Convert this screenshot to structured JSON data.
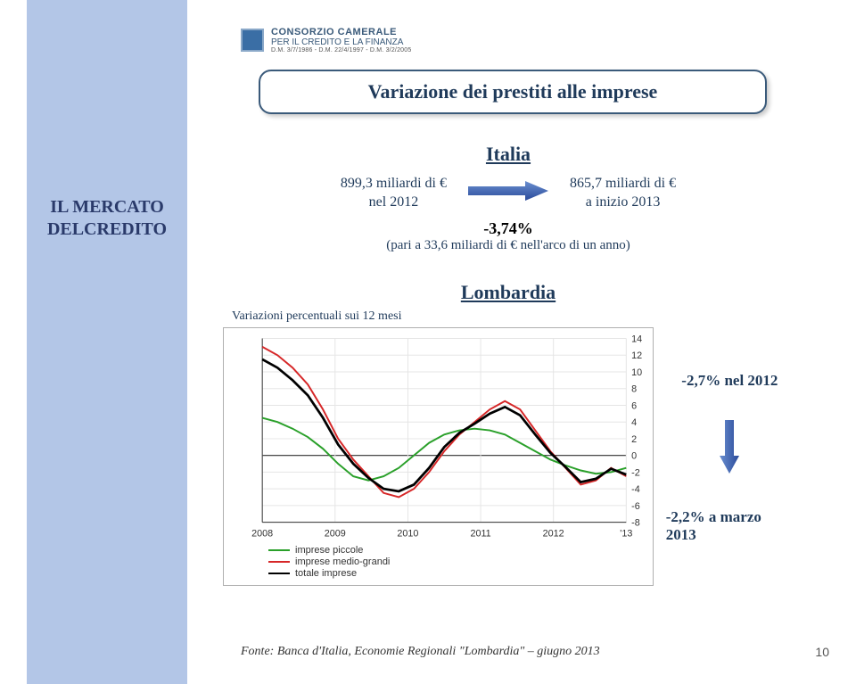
{
  "logo": {
    "name": "CONSORZIO CAMERALE",
    "sub1": "PER IL CREDITO E LA FINANZA",
    "sub2": "D.M. 3/7/1986 - D.M. 22/4/1997 - D.M. 3/2/2005"
  },
  "title": "Variazione dei prestiti alle imprese",
  "sidebar": {
    "line1": "IL MERCATO",
    "line2": "DELCREDITO"
  },
  "italia": {
    "heading": "Italia",
    "left_line1": "899,3 miliardi di €",
    "left_line2": "nel 2012",
    "right_line1": "865,7 miliardi di €",
    "right_line2": "a inizio 2013",
    "percent": "-3,74%",
    "paren": "(pari a 33,6 miliardi di € nell'arco di un anno)",
    "arrow_color": "#3a5faa"
  },
  "lombardia": {
    "heading": "Lombardia",
    "subtitle": "Variazioni percentuali sui 12 mesi",
    "note1": "-2,7% nel 2012",
    "note2": "-2,2% a marzo 2013",
    "arrow_color": "#3a5faa"
  },
  "chart": {
    "type": "line",
    "background_color": "#ffffff",
    "border_color": "#b0b0b0",
    "grid_color": "#e5e5e5",
    "axis_color": "#333333",
    "x_labels": [
      "2008",
      "2009",
      "2010",
      "2011",
      "2012",
      "'13"
    ],
    "y_min": -8,
    "y_max": 14,
    "y_tick_step": 2,
    "label_fontsize": 11,
    "series": [
      {
        "name": "imprese piccole",
        "color": "#2aa02a",
        "width": 2,
        "values": [
          4.5,
          4.0,
          3.2,
          2.2,
          0.8,
          -1.0,
          -2.5,
          -3.0,
          -2.5,
          -1.5,
          0.0,
          1.5,
          2.5,
          3.0,
          3.2,
          3.0,
          2.5,
          1.5,
          0.5,
          -0.5,
          -1.2,
          -1.8,
          -2.2,
          -2.0,
          -1.5
        ]
      },
      {
        "name": "imprese medio-grandi",
        "color": "#d62728",
        "width": 2,
        "values": [
          13.0,
          12.0,
          10.5,
          8.5,
          5.5,
          2.0,
          -0.5,
          -2.5,
          -4.5,
          -5.0,
          -4.0,
          -2.0,
          0.5,
          2.5,
          4.0,
          5.5,
          6.5,
          5.5,
          3.0,
          0.5,
          -1.5,
          -3.5,
          -3.0,
          -1.5,
          -2.5
        ]
      },
      {
        "name": "totale imprese",
        "color": "#000000",
        "width": 2.8,
        "values": [
          11.5,
          10.5,
          9.0,
          7.2,
          4.5,
          1.3,
          -1.0,
          -2.7,
          -4.0,
          -4.3,
          -3.5,
          -1.5,
          1.0,
          2.7,
          3.8,
          5.0,
          5.8,
          4.8,
          2.5,
          0.3,
          -1.4,
          -3.2,
          -2.8,
          -1.6,
          -2.3
        ]
      }
    ]
  },
  "footer": "Fonte: Banca d'Italia, Economie Regionali \"Lombardia\" – giugno 2013",
  "page_number": "10"
}
